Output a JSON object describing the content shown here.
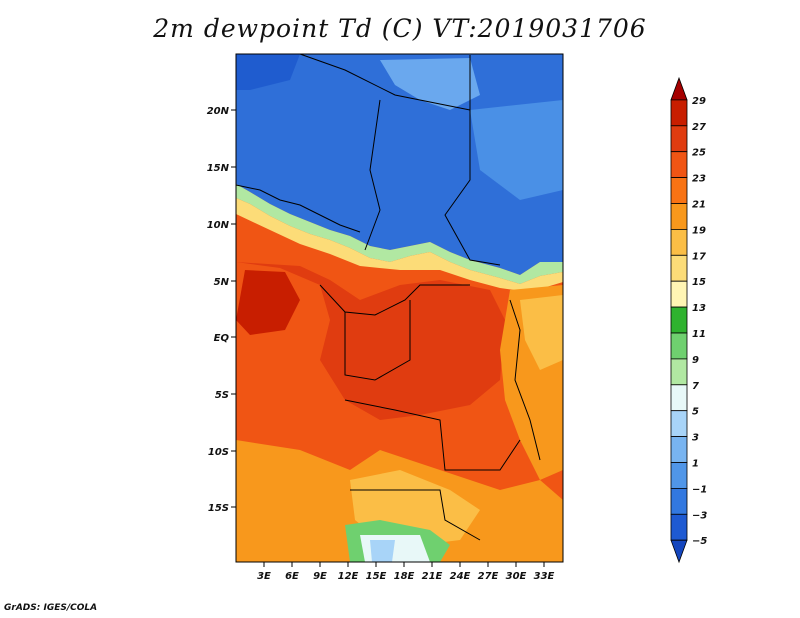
{
  "title": "2m dewpoint Td (C) VT:2019031706",
  "credit": "GrADS: IGES/COLA",
  "map": {
    "lat_labels": [
      "20N",
      "15N",
      "10N",
      "5N",
      "EQ",
      "5S",
      "10S",
      "15S"
    ],
    "lon_labels": [
      "3E",
      "6E",
      "9E",
      "12E",
      "15E",
      "18E",
      "21E",
      "24E",
      "27E",
      "30E",
      "33E"
    ]
  },
  "colorbar": {
    "labels": [
      "29",
      "27",
      "25",
      "23",
      "21",
      "19",
      "17",
      "15",
      "13",
      "11",
      "9",
      "7",
      "5",
      "3",
      "1",
      "−1",
      "−3",
      "−5"
    ],
    "colors": [
      "#a50000",
      "#c81e00",
      "#e03c10",
      "#f05514",
      "#f87314",
      "#f8981c",
      "#fbbe46",
      "#fcdc78",
      "#fff5b4",
      "#2fb22f",
      "#6fd06f",
      "#b1e8a2",
      "#e8f8f8",
      "#a8d4f8",
      "#78b4f0",
      "#5096e8",
      "#3278e0",
      "#1e5ad2",
      "#1446be"
    ]
  }
}
